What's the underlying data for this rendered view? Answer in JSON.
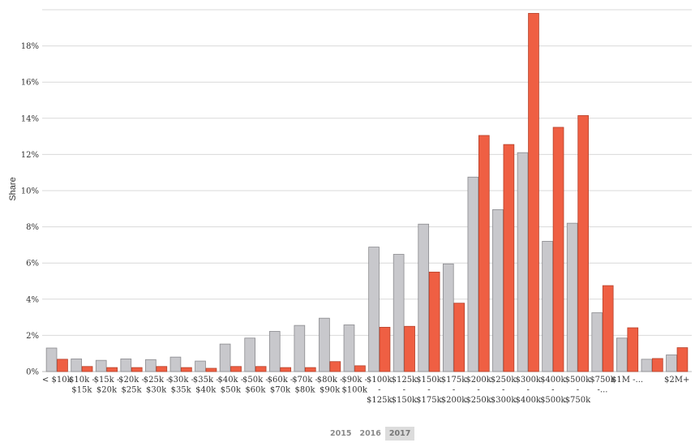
{
  "chart_data": {
    "type": "bar",
    "ylabel": "Share",
    "ylim": [
      0,
      20
    ],
    "yticks": [
      0,
      2,
      4,
      6,
      8,
      10,
      12,
      14,
      16,
      18
    ],
    "ytick_labels": [
      "0%",
      "2%",
      "4%",
      "6%",
      "8%",
      "10%",
      "12%",
      "14%",
      "16%",
      "18%"
    ],
    "grid": true,
    "categories": [
      [
        "< $10k"
      ],
      [
        "$10k -",
        "$15k"
      ],
      [
        "$15k -",
        "$20k"
      ],
      [
        "$20k -",
        "$25k"
      ],
      [
        "$25k -",
        "$30k"
      ],
      [
        "$30k -",
        "$35k"
      ],
      [
        "$35k -",
        "$40k"
      ],
      [
        "$40k -",
        "$50k"
      ],
      [
        "$50k -",
        "$60k"
      ],
      [
        "$60k -",
        "$70k"
      ],
      [
        "$70k -",
        "$80k"
      ],
      [
        "$80k -",
        "$90k"
      ],
      [
        "$90k -",
        "$100k"
      ],
      [
        "$100k",
        "-",
        "$125k"
      ],
      [
        "$125k",
        "-",
        "$150k"
      ],
      [
        "$150k",
        "-",
        "$175k"
      ],
      [
        "$175k",
        "-",
        "$200k"
      ],
      [
        "$200k",
        "-",
        "$250k"
      ],
      [
        "$250k",
        "-",
        "$300k"
      ],
      [
        "$300k",
        "-",
        "$400k"
      ],
      [
        "$400k",
        "-",
        "$500k"
      ],
      [
        "$500k",
        "-",
        "$750k"
      ],
      [
        "$750k",
        "-..."
      ],
      [
        "$1M -..."
      ],
      [
        ""
      ],
      [
        "$2M+"
      ]
    ],
    "series": [
      {
        "color": "#c8c8cc",
        "stroke": "#8a8a8e",
        "values": [
          1.3,
          0.7,
          0.62,
          0.7,
          0.66,
          0.8,
          0.58,
          1.52,
          1.85,
          2.22,
          2.55,
          2.95,
          2.58,
          6.88,
          6.48,
          8.15,
          5.95,
          10.75,
          8.95,
          12.1,
          7.2,
          8.2,
          3.25,
          1.85,
          0.68,
          0.92
        ]
      },
      {
        "color": "#ef5f43",
        "stroke": "#b5402a",
        "values": [
          0.68,
          0.28,
          0.22,
          0.22,
          0.28,
          0.22,
          0.18,
          0.28,
          0.28,
          0.22,
          0.22,
          0.55,
          0.32,
          2.45,
          2.5,
          5.5,
          3.78,
          13.05,
          12.55,
          19.8,
          13.5,
          14.15,
          4.75,
          2.42,
          0.72,
          1.32
        ]
      }
    ]
  },
  "legend": {
    "items": [
      {
        "label": "2015",
        "active": false
      },
      {
        "label": "2016",
        "active": false
      },
      {
        "label": "2017",
        "active": true
      }
    ]
  }
}
